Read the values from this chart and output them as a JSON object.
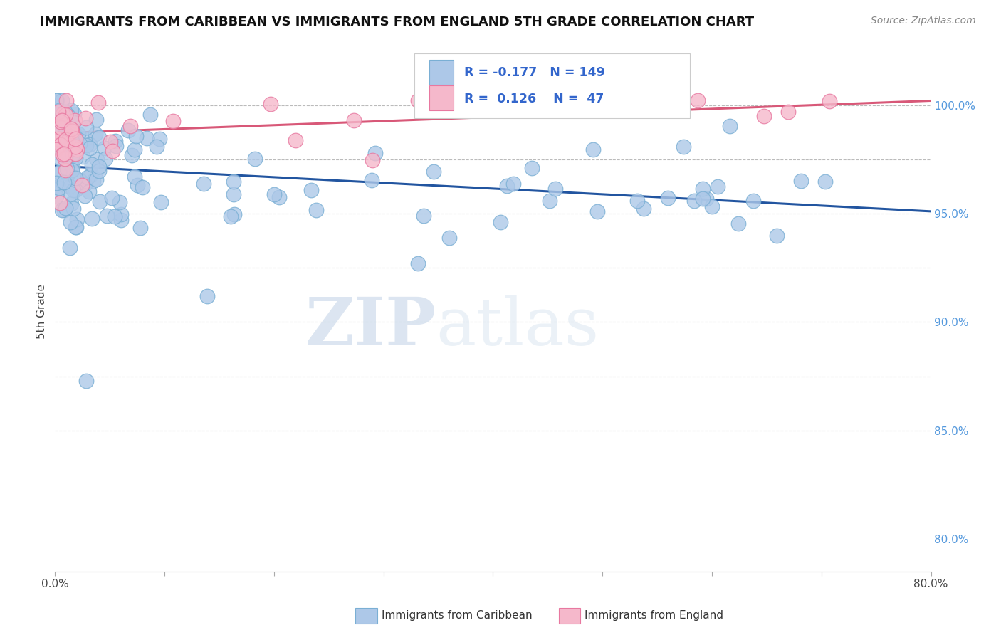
{
  "title": "IMMIGRANTS FROM CARIBBEAN VS IMMIGRANTS FROM ENGLAND 5TH GRADE CORRELATION CHART",
  "source": "Source: ZipAtlas.com",
  "ylabel": "5th Grade",
  "xlim": [
    0.0,
    0.8
  ],
  "ylim": [
    0.785,
    1.025
  ],
  "legend_R_blue": "-0.177",
  "legend_N_blue": "149",
  "legend_R_pink": "0.126",
  "legend_N_pink": "47",
  "blue_color": "#adc8e8",
  "blue_edge": "#7aafd4",
  "pink_color": "#f5b8cb",
  "pink_edge": "#e878a0",
  "trendline_blue": "#2255a0",
  "trendline_pink": "#d85878",
  "watermark_zip": "ZIP",
  "watermark_atlas": "atlas",
  "title_color": "#111111",
  "axis_label_color": "#444444",
  "right_tick_color": "#5599dd",
  "grid_color": "#bbbbbb",
  "blue_trend_x0": 0.0,
  "blue_trend_y0": 0.972,
  "blue_trend_x1": 0.8,
  "blue_trend_y1": 0.951,
  "pink_trend_x0": 0.0,
  "pink_trend_y0": 0.987,
  "pink_trend_x1": 0.8,
  "pink_trend_y1": 1.002
}
